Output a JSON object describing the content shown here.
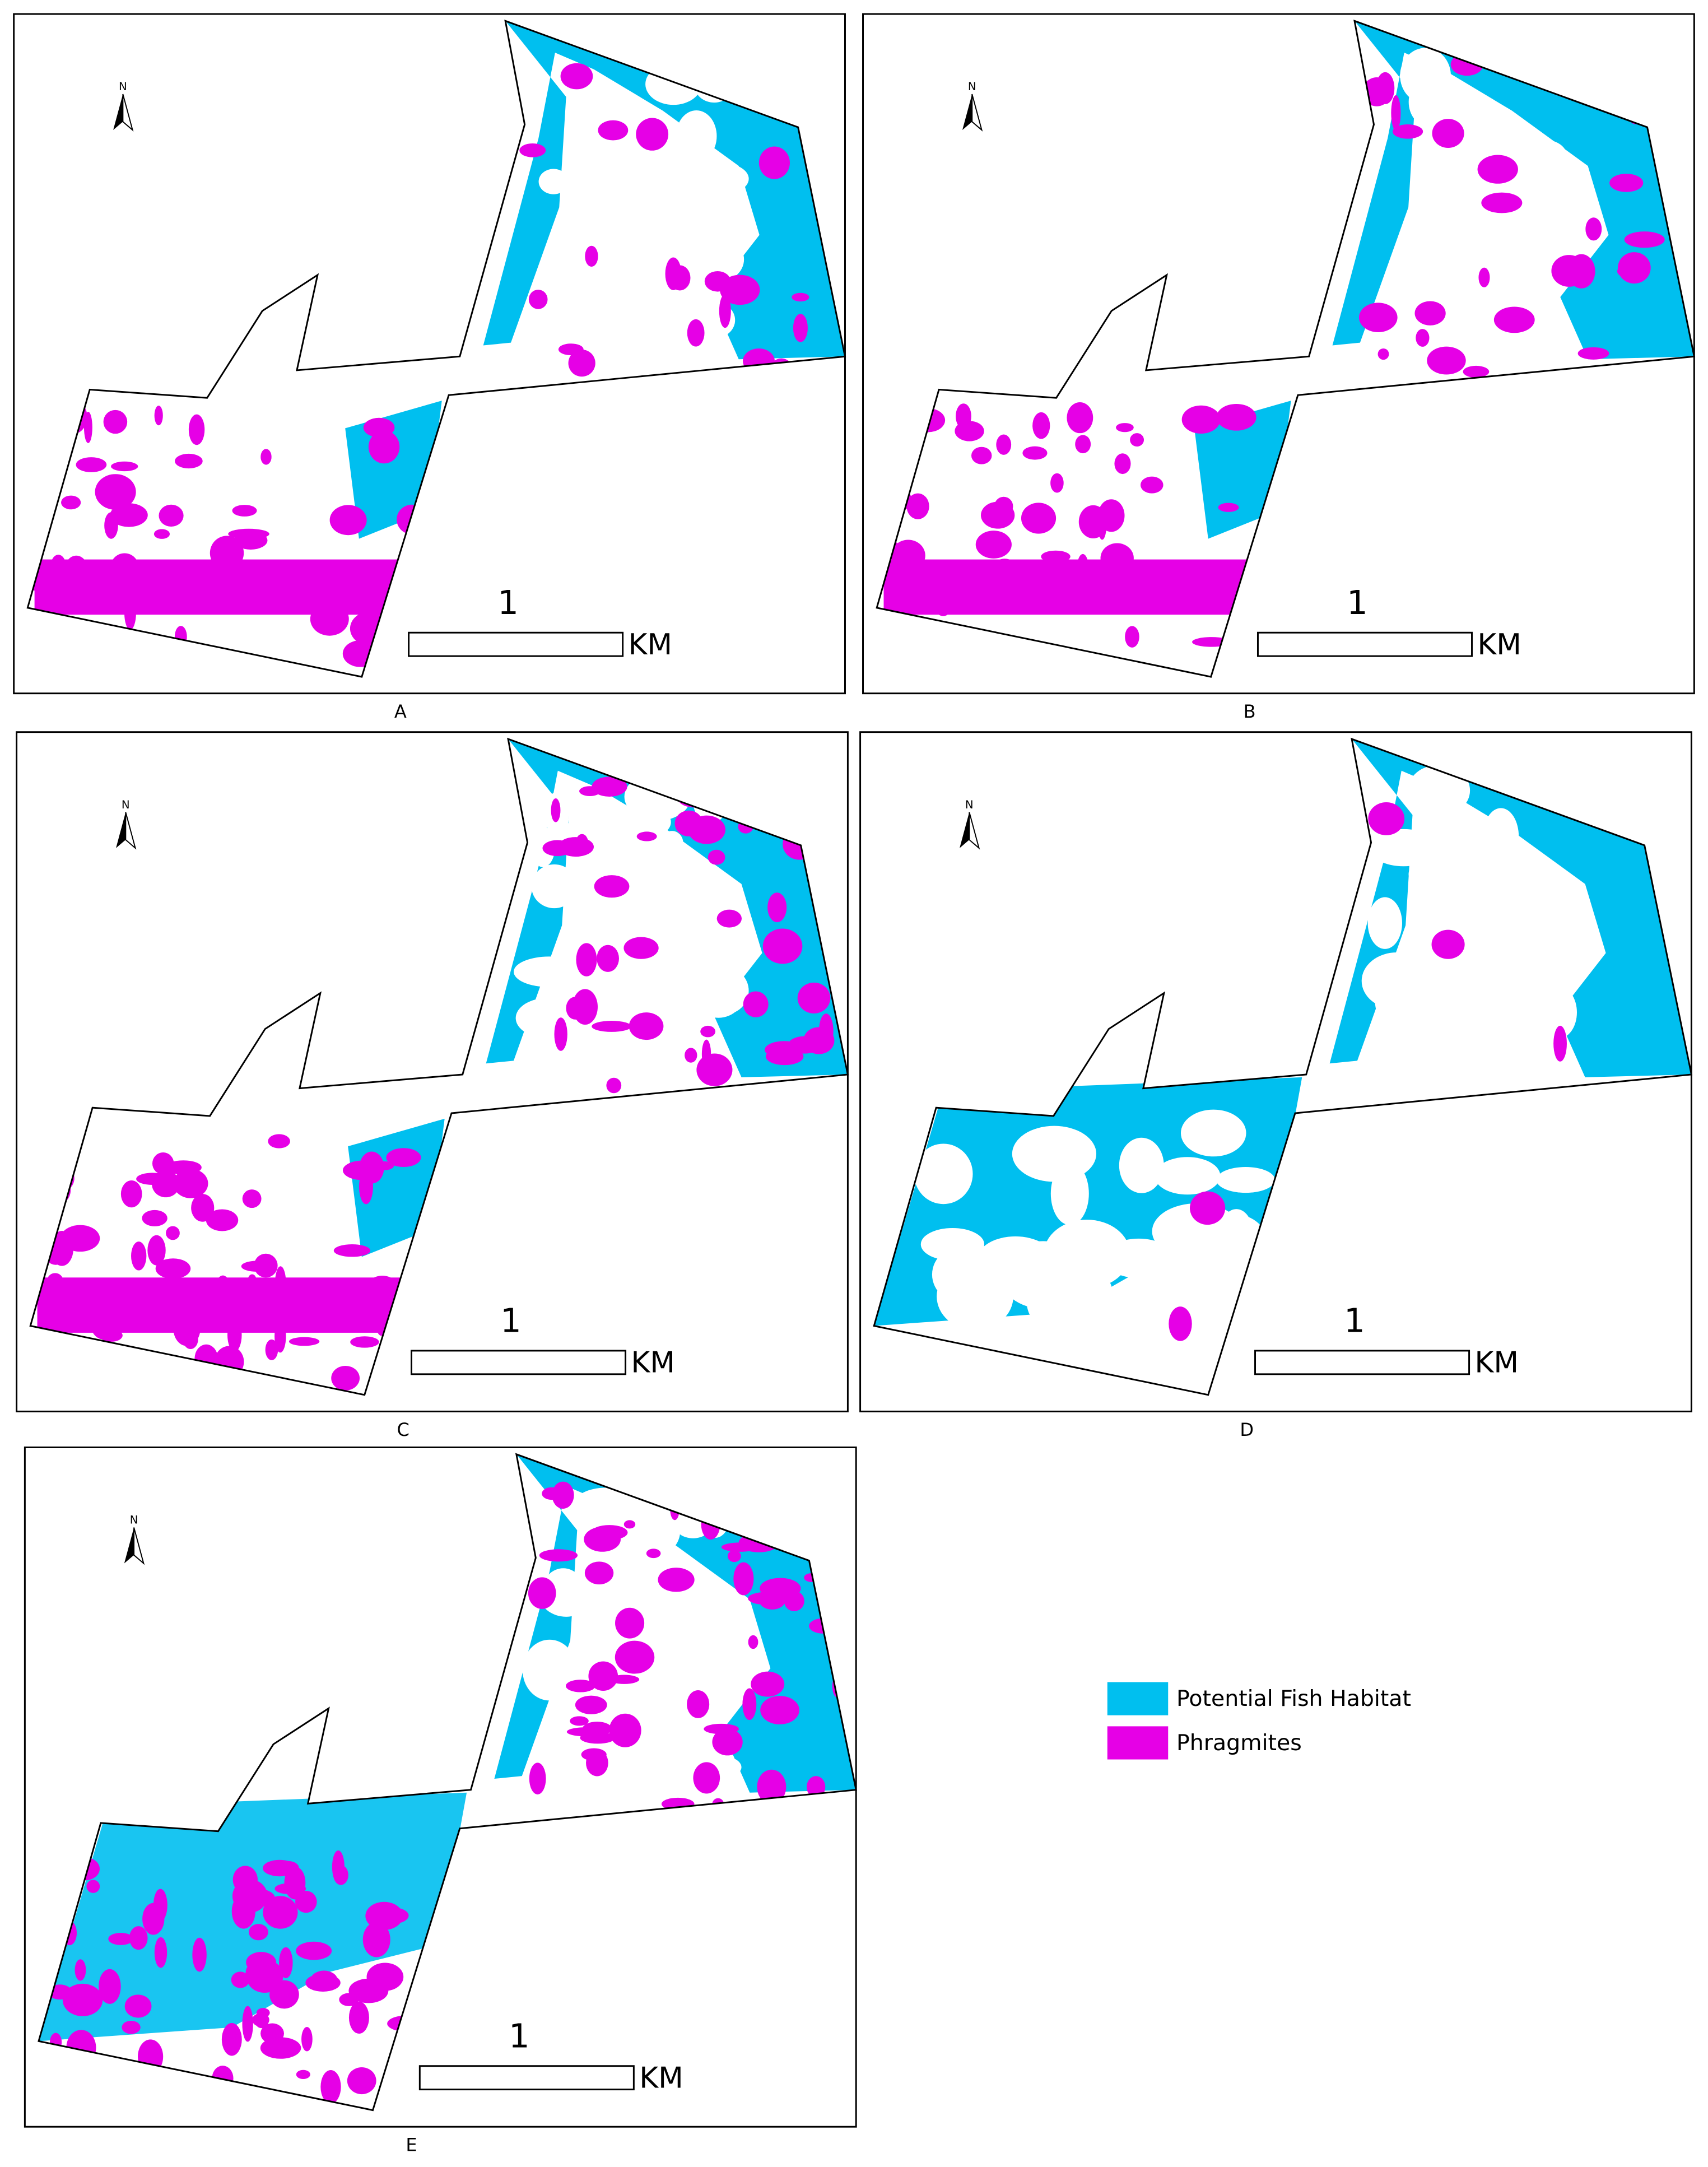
{
  "panels": [
    {
      "label": "A",
      "north": "N",
      "scale_label": "1",
      "scale_unit": "KM"
    },
    {
      "label": "B",
      "north": "N",
      "scale_label": "1",
      "scale_unit": "KM"
    },
    {
      "label": "C",
      "north": "N",
      "scale_label": "1",
      "scale_unit": "KM"
    },
    {
      "label": "D",
      "north": "N",
      "scale_label": "1",
      "scale_unit": "KM"
    },
    {
      "label": "E",
      "north": "N",
      "scale_label": "1",
      "scale_unit": "KM"
    }
  ],
  "legend": {
    "items": [
      {
        "label": "Potential Fish Habitat",
        "color": "#00bfef"
      },
      {
        "label": "Phragmites",
        "color": "#e600e6"
      }
    ]
  }
}
